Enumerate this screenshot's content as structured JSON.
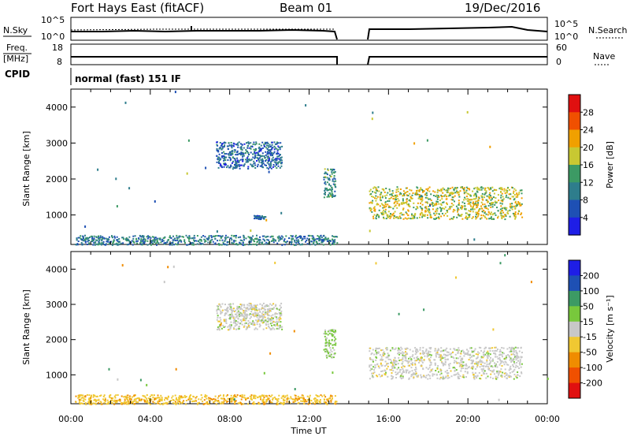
{
  "header": {
    "station": "Fort Hays East (fitACF)",
    "beam": "Beam 01",
    "date": "19/Dec/2016"
  },
  "noise_panel": {
    "left_label": "N.Sky",
    "right_label": "N.Search",
    "left_ticks": [
      "10^5",
      "10^0"
    ],
    "right_ticks": [
      "10^5",
      "10^0"
    ]
  },
  "freq_panel": {
    "left_label_1": "Freq.",
    "left_label_2": "[MHz]",
    "right_label": "Nave",
    "left_ticks": [
      "18",
      "8"
    ],
    "right_ticks": [
      "60",
      "0"
    ]
  },
  "cpid_panel": {
    "label": "CPID",
    "mode": "normal (fast) 151 IF"
  },
  "x_axis": {
    "label": "Time UT",
    "ticks": [
      "00:00",
      "04:00",
      "08:00",
      "12:00",
      "16:00",
      "20:00",
      "00:00"
    ]
  },
  "chart_data": [
    {
      "type": "heatmap",
      "title": "",
      "xlabel": "Time UT",
      "ylabel": "Slant Range [km]",
      "xlim": [
        0,
        24
      ],
      "ylim": [
        180,
        4500
      ],
      "y_ticks": [
        "1000",
        "2000",
        "3000",
        "4000"
      ],
      "colorbar": {
        "label": "Power [dB]",
        "ticks": [
          "4",
          "8",
          "12",
          "16",
          "20",
          "24",
          "28"
        ],
        "colors": [
          "#1e1ee6",
          "#1e50b4",
          "#2e7d8c",
          "#3c9a64",
          "#c8c832",
          "#f0a000",
          "#f05000",
          "#e01010"
        ]
      },
      "data_gaps_hours": [
        [
          13.5,
          15.0
        ]
      ],
      "regions": [
        {
          "t_start": 7.3,
          "t_end": 10.6,
          "range_start": 2300,
          "range_end": 3050,
          "level_dB": 8
        },
        {
          "t_start": 9.2,
          "t_end": 9.8,
          "range_start": 900,
          "range_end": 1000,
          "level_dB": 8
        },
        {
          "t_start": 12.7,
          "t_end": 13.3,
          "range_start": 1500,
          "range_end": 2300,
          "level_dB": 12
        },
        {
          "t_start": 15.0,
          "t_end": 22.7,
          "range_start": 900,
          "range_end": 1800,
          "level_dB": 18
        },
        {
          "t_start": 0.2,
          "t_end": 13.4,
          "range_start": 180,
          "range_end": 450,
          "level_dB": 10
        }
      ]
    },
    {
      "type": "heatmap",
      "title": "",
      "xlabel": "Time UT",
      "ylabel": "Slant Range [km]",
      "xlim": [
        0,
        24
      ],
      "ylim": [
        180,
        4500
      ],
      "y_ticks": [
        "1000",
        "2000",
        "3000",
        "4000"
      ],
      "colorbar": {
        "label": "Velocity [m s⁻¹]",
        "ticks": [
          "200",
          "100",
          "50",
          "15",
          "-15",
          "-50",
          "-100",
          "-200"
        ],
        "colors": [
          "#1e1ee6",
          "#1e50b4",
          "#3c9a64",
          "#78c83c",
          "#c8c8c8",
          "#f0c832",
          "#f08c00",
          "#f05000",
          "#e01010"
        ]
      },
      "data_gaps_hours": [
        [
          13.5,
          15.0
        ]
      ],
      "regions": [
        {
          "t_start": 7.3,
          "t_end": 10.6,
          "range_start": 2300,
          "range_end": 3050,
          "velocity_ms": 0
        },
        {
          "t_start": 12.7,
          "t_end": 13.3,
          "range_start": 1500,
          "range_end": 2300,
          "velocity_ms": 20
        },
        {
          "t_start": 15.0,
          "t_end": 22.7,
          "range_start": 900,
          "range_end": 1800,
          "velocity_ms": 0
        },
        {
          "t_start": 0.2,
          "t_end": 13.4,
          "range_start": 180,
          "range_end": 450,
          "velocity_ms": -40
        }
      ]
    }
  ]
}
